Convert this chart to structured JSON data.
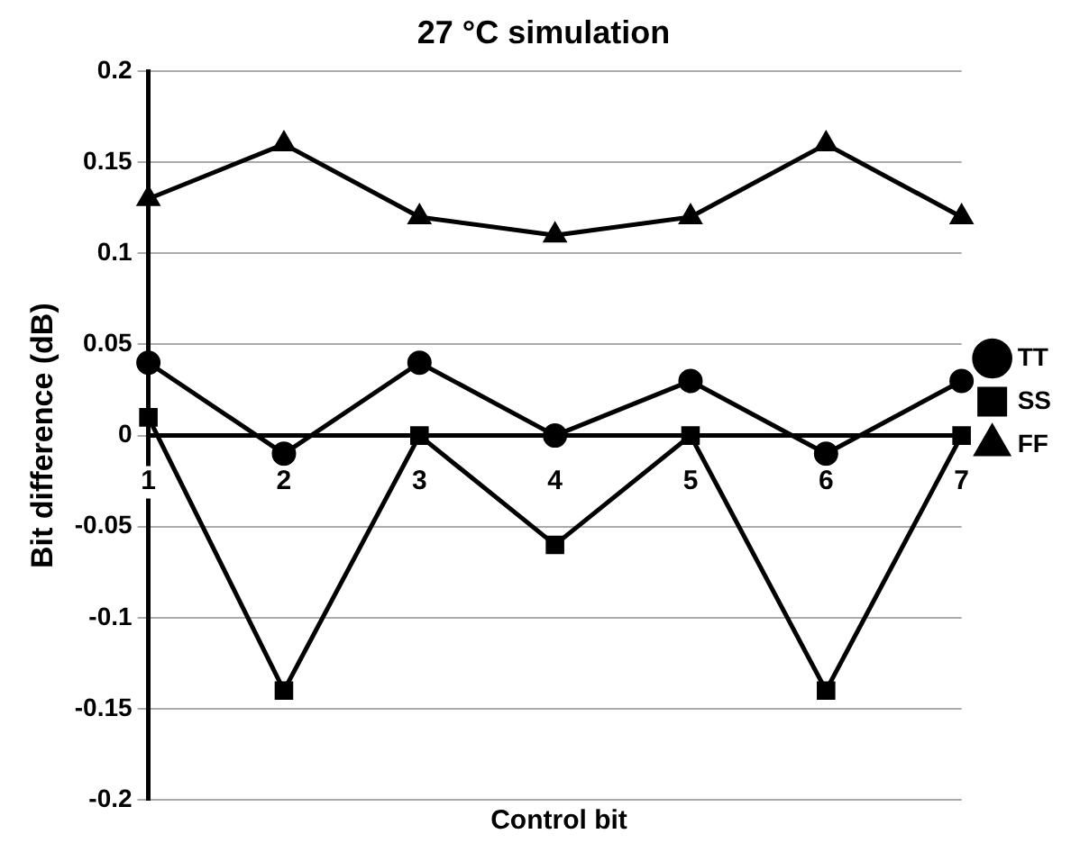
{
  "chart_data": {
    "type": "line",
    "title": "27 °C simulation",
    "xlabel": "Control bit",
    "ylabel": "Bit difference (dB)",
    "categories": [
      "1",
      "2",
      "3",
      "4",
      "5",
      "6",
      "7"
    ],
    "series": [
      {
        "name": "TT",
        "color": "#000000",
        "marker": "circle",
        "values": [
          0.04,
          -0.01,
          0.04,
          0,
          0.03,
          -0.01,
          0.03
        ]
      },
      {
        "name": "SS",
        "color": "#000000",
        "marker": "square",
        "values": [
          0.01,
          -0.14,
          0,
          -0.06,
          0,
          -0.14,
          0
        ]
      },
      {
        "name": "FF",
        "color": "#000000",
        "marker": "triangle",
        "values": [
          0.13,
          0.16,
          0.12,
          0.11,
          0.12,
          0.16,
          0.12
        ]
      }
    ],
    "ylim": [
      -0.2,
      0.2
    ],
    "yticks": [
      -0.2,
      -0.15,
      -0.1,
      -0.05,
      0,
      0.05,
      0.1,
      0.15,
      0.2
    ],
    "grid": "y",
    "legend": "right",
    "line_style": "solid"
  }
}
